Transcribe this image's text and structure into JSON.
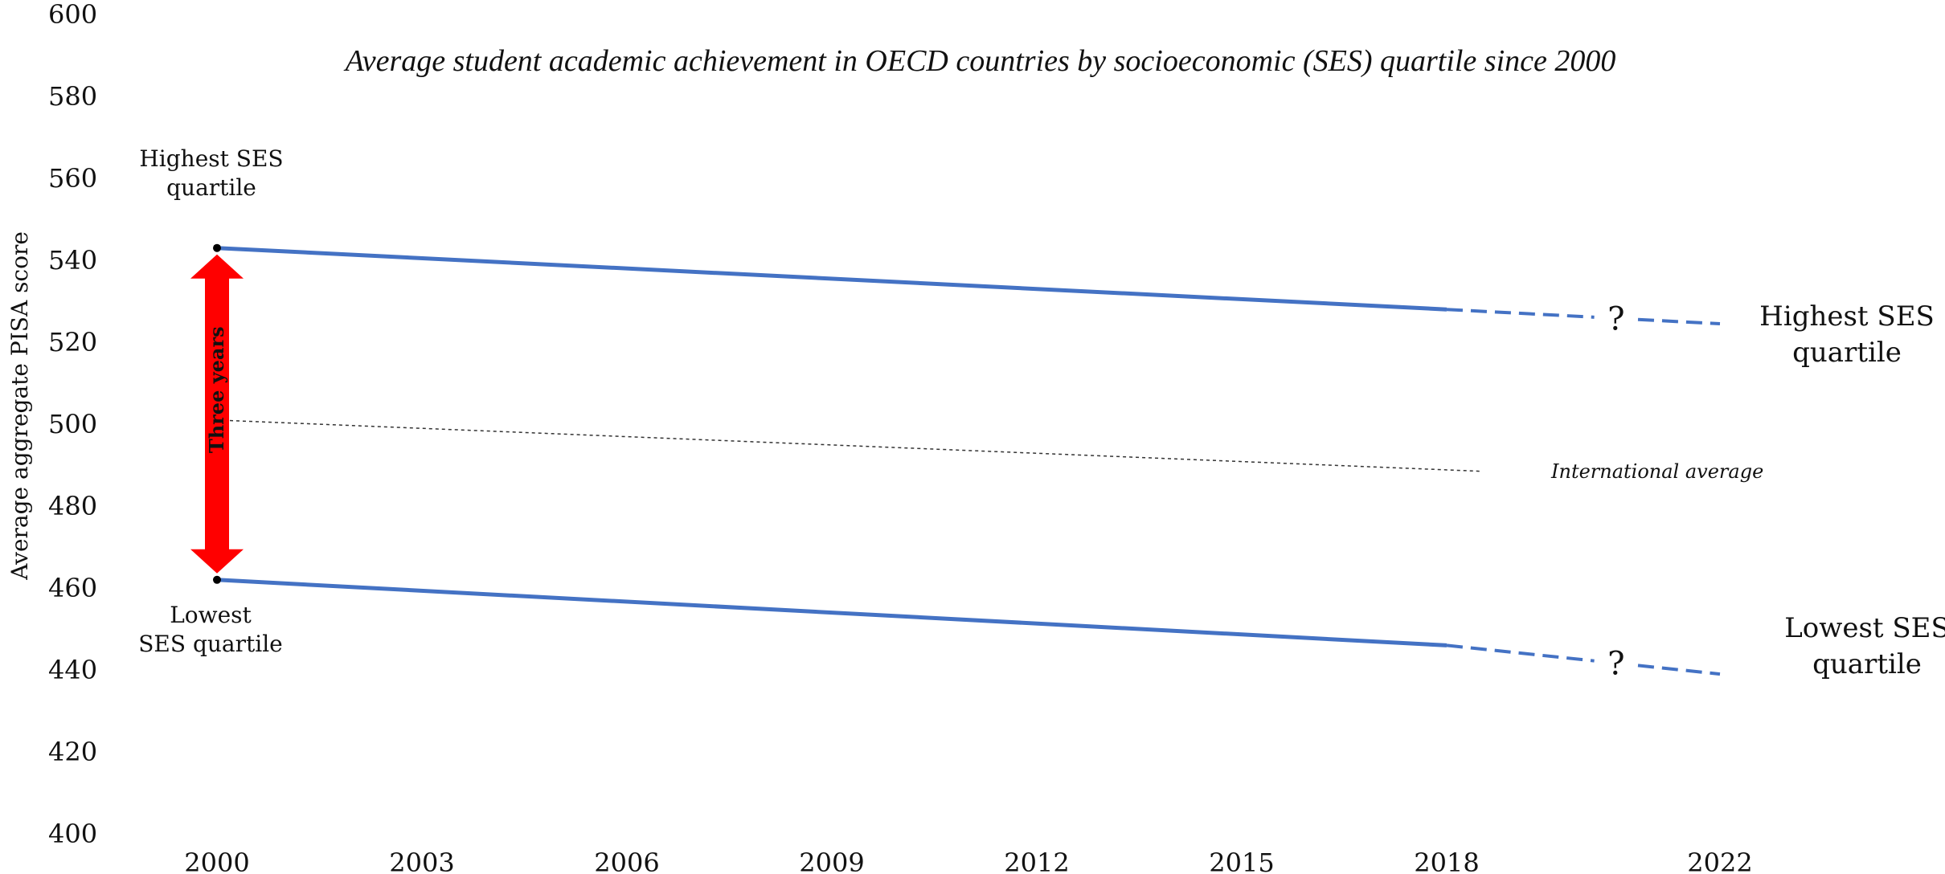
{
  "chart_data": {
    "type": "line",
    "title": "Average student academic achievement in OECD countries by socioeconomic (SES) quartile since 2000",
    "ylabel": "Average aggregate PISA score",
    "xlabel": "",
    "ylim": [
      400,
      600
    ],
    "y_ticks": [
      "400",
      "420",
      "440",
      "460",
      "480",
      "500",
      "520",
      "540",
      "560",
      "580",
      "600"
    ],
    "y_tick_values": [
      400,
      420,
      440,
      460,
      480,
      500,
      520,
      540,
      560,
      580,
      600
    ],
    "x_ticks": [
      "2000",
      "2003",
      "2006",
      "2009",
      "2012",
      "2015",
      "2018",
      "2022"
    ],
    "x_tick_values": [
      2000,
      2003,
      2006,
      2009,
      2012,
      2015,
      2018,
      2022
    ],
    "grid": false,
    "series": [
      {
        "name": "Highest SES quartile",
        "color": "#4472C4",
        "solid": {
          "x": [
            2000,
            2018
          ],
          "y": [
            543,
            528
          ]
        },
        "projected": {
          "x": [
            2018,
            2022
          ],
          "y": [
            528,
            524.5
          ]
        }
      },
      {
        "name": "Lowest SES quartile",
        "color": "#4472C4",
        "solid": {
          "x": [
            2000,
            2018
          ],
          "y": [
            462,
            446
          ]
        },
        "projected": {
          "x": [
            2018,
            2022
          ],
          "y": [
            446,
            439
          ]
        }
      },
      {
        "name": "International average",
        "color": "#333333",
        "style": "dotted",
        "x": [
          2000,
          2018.5
        ],
        "y": [
          501,
          488.5
        ]
      }
    ],
    "annotations": {
      "highest_start_label": [
        "Highest SES",
        "quartile"
      ],
      "lowest_start_label": [
        "Lowest",
        "SES quartile"
      ],
      "highest_end_label": [
        "Highest SES",
        "quartile"
      ],
      "lowest_end_label": [
        "Lowest SES",
        "quartile"
      ],
      "international_average_label": "International average",
      "gap_label": "Three years",
      "gap_arrow_color": "#FF0000",
      "projection_marker": "?"
    }
  }
}
